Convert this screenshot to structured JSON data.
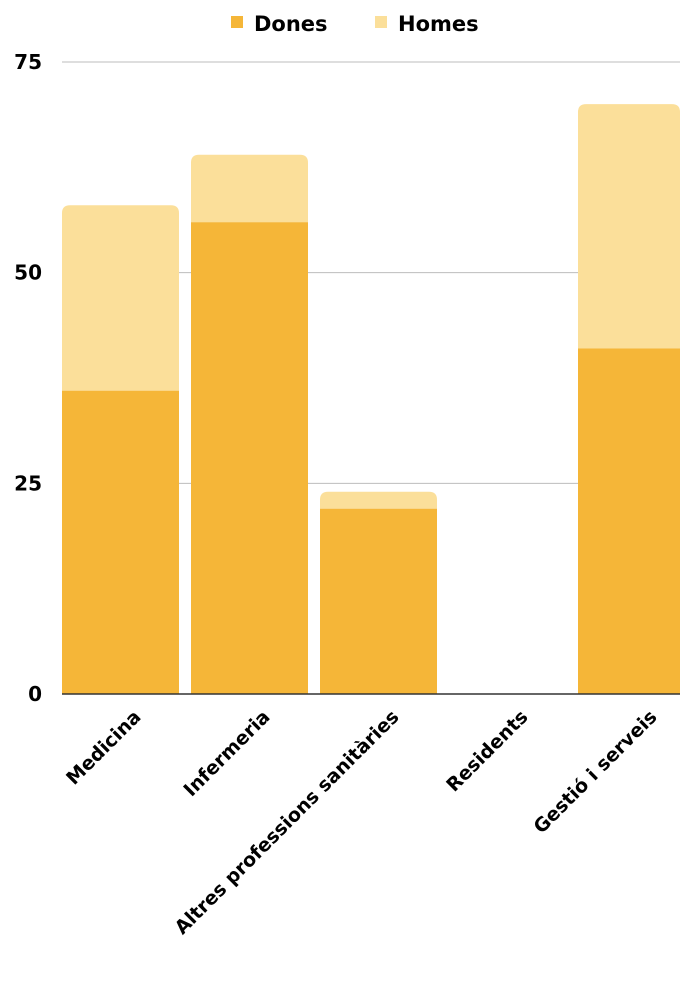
{
  "chart_data": {
    "type": "bar",
    "stacked": true,
    "categories": [
      "Medicina",
      "Infermeria",
      "Altres professions sanitàries",
      "Residents",
      "Gestió i serveis"
    ],
    "series": [
      {
        "name": "Dones",
        "color": "#f5b638",
        "values": [
          36,
          56,
          22,
          0,
          41
        ]
      },
      {
        "name": "Homes",
        "color": "#fbdf9a",
        "values": [
          22,
          8,
          2,
          0,
          29
        ]
      }
    ],
    "yticks": [
      0,
      25,
      50,
      75
    ],
    "ylim": [
      0,
      75
    ],
    "grid": true,
    "legend_position": "top-center"
  }
}
